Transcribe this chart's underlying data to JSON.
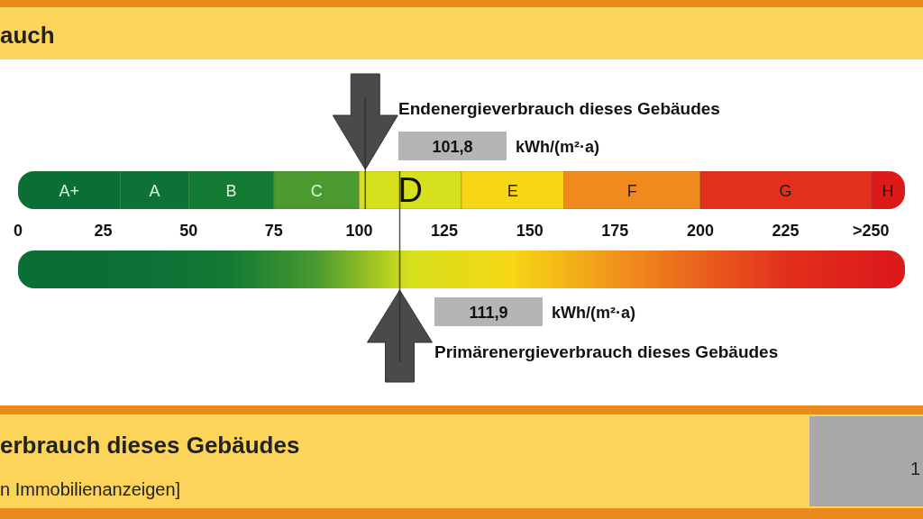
{
  "chart_data": {
    "type": "bar",
    "orientation": "horizontal",
    "stacked": true,
    "title": "auch",
    "categories": [
      null
    ],
    "xlim": [
      0,
      260
    ],
    "xticks": [
      0,
      25,
      50,
      75,
      100,
      125,
      150,
      175,
      200,
      225,
      {
        "value": 250,
        "label": ">250"
      }
    ],
    "series": [
      {
        "name": "A+",
        "color": "#0b6e35",
        "values": [
          30
        ]
      },
      {
        "name": "A",
        "color": "#0c7236",
        "values": [
          20
        ]
      },
      {
        "name": "B",
        "color": "#137a34",
        "values": [
          25
        ]
      },
      {
        "name": "C",
        "color": "#4a9a30",
        "values": [
          25
        ]
      },
      {
        "name": "D",
        "color": "#d6e01c",
        "values": [
          30
        ]
      },
      {
        "name": "E",
        "color": "#f6d615",
        "values": [
          30
        ]
      },
      {
        "name": "F",
        "color": "#f08a1c",
        "values": [
          40
        ]
      },
      {
        "name": "G",
        "color": "#e2301c",
        "values": [
          50
        ]
      },
      {
        "name": "H",
        "color": "#dc1a1a",
        "values": [
          10
        ]
      }
    ],
    "ref_lines": [
      {
        "axis": "x",
        "value": 101.8,
        "label": "Endenergieverbrauch dieses Gebäudes"
      },
      {
        "axis": "x",
        "value": 111.9,
        "label": "Primärenergieverbrauch dieses Gebäudes"
      }
    ],
    "annotations": [
      "101,8",
      "kWh/(m²·a)",
      "111,9",
      "kWh/(m²·a)",
      "erbrauch dieses Gebäudes",
      "n Immobilienanzeigen]",
      "1"
    ]
  }
}
